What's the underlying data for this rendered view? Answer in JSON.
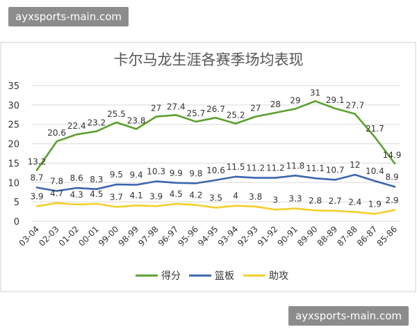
{
  "watermarks": {
    "top": "ayxsports-main.com",
    "bottom": "ayxsports-main.com"
  },
  "colors": {
    "score": "#5aa02c",
    "rebounds": "#3a66ad",
    "assists": "#f3cf2a",
    "grid": "#d9d9d9",
    "text": "#333333"
  },
  "chart_data": {
    "type": "line",
    "title": "卡尔马龙生涯各赛季场均表现",
    "categories": [
      "03-04",
      "02-03",
      "01-02",
      "00-01",
      "99-00",
      "98-99",
      "97-98",
      "96-97",
      "95-96",
      "94-95",
      "93-94",
      "92-93",
      "91-92",
      "90-91",
      "89-90",
      "88-89",
      "87-88",
      "86-87",
      "85-86"
    ],
    "ylim": [
      0,
      35
    ],
    "yticks": [
      0,
      5,
      10,
      15,
      20,
      25,
      30,
      35
    ],
    "grid": true,
    "legend_position": "bottom",
    "series": [
      {
        "name": "得分",
        "values": [
          13.2,
          20.6,
          22.4,
          23.2,
          25.5,
          23.8,
          27,
          27.4,
          25.7,
          26.7,
          25.2,
          27,
          28,
          29,
          31,
          29.1,
          27.7,
          21.7,
          14.9
        ],
        "labels": [
          "13.2",
          "20.6",
          "22.4",
          "23.2",
          "25.5",
          "23.8",
          "27",
          "27.4",
          "25.7",
          "26.7",
          "25.2",
          "27",
          "28",
          "29",
          "31",
          "29.1",
          "27.7",
          "21.7",
          "14.9"
        ]
      },
      {
        "name": "篮板",
        "values": [
          8.7,
          7.8,
          8.6,
          8.3,
          9.5,
          9.4,
          10.3,
          9.9,
          9.8,
          10.6,
          11.5,
          11.2,
          11.2,
          11.8,
          11.1,
          10.7,
          12,
          10.4,
          8.9
        ],
        "labels": [
          "8.7",
          "7.8",
          "8.6",
          "8.3",
          "9.5",
          "9.4",
          "10.3",
          "9.9",
          "9.8",
          "10.6",
          "11.5",
          "11.2",
          "11.2",
          "11.8",
          "11.1",
          "10.7",
          "12",
          "10.4",
          "8.9"
        ]
      },
      {
        "name": "助攻",
        "values": [
          3.9,
          4.7,
          4.3,
          4.5,
          3.7,
          4.1,
          3.9,
          4.5,
          4.2,
          3.5,
          4,
          3.8,
          3,
          3.3,
          2.8,
          2.7,
          2.4,
          1.9,
          2.9
        ],
        "labels": [
          "3.9",
          "4.7",
          "4.3",
          "4.5",
          "3.7",
          "4.1",
          "3.9",
          "4.5",
          "4.2",
          "3.5",
          "4",
          "3.8",
          "3",
          "3.3",
          "2.8",
          "2.7",
          "2.4",
          "1.9",
          "2.9"
        ]
      }
    ]
  }
}
